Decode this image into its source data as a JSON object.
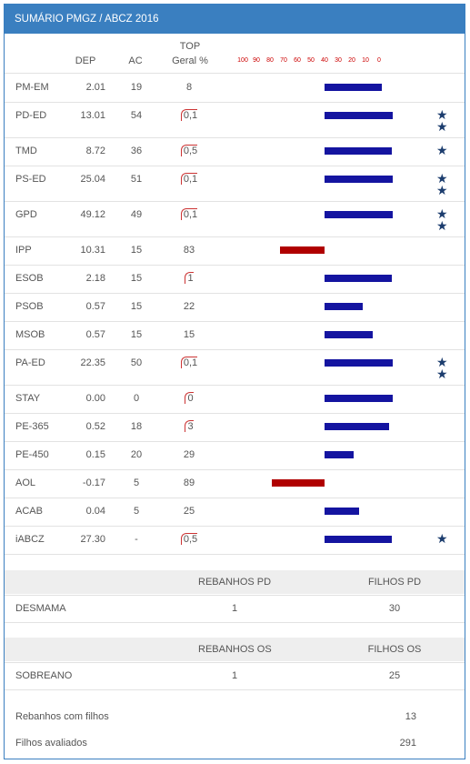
{
  "header": {
    "title": "SUMÁRIO PMGZ / ABCZ 2016"
  },
  "columns": {
    "dep": "DEP",
    "ac": "AC",
    "top": [
      "TOP",
      "Geral %"
    ]
  },
  "scale": [
    100,
    90,
    80,
    70,
    60,
    50,
    40,
    30,
    20,
    10,
    0
  ],
  "rows": [
    {
      "trait": "PM-EM",
      "dep": "2.01",
      "ac": "19",
      "top": "8",
      "stars": 0
    },
    {
      "trait": "PD-ED",
      "dep": "13.01",
      "ac": "54",
      "top": "0,1",
      "stars": 2
    },
    {
      "trait": "TMD",
      "dep": "8.72",
      "ac": "36",
      "top": "0,5",
      "stars": 1
    },
    {
      "trait": "PS-ED",
      "dep": "25.04",
      "ac": "51",
      "top": "0,1",
      "stars": 2
    },
    {
      "trait": "GPD",
      "dep": "49.12",
      "ac": "49",
      "top": "0,1",
      "stars": 2
    },
    {
      "trait": "IPP",
      "dep": "10.31",
      "ac": "15",
      "top": "83",
      "stars": 0
    },
    {
      "trait": "ESOB",
      "dep": "2.18",
      "ac": "15",
      "top": "1",
      "stars": 0
    },
    {
      "trait": "PSOB",
      "dep": "0.57",
      "ac": "15",
      "top": "22",
      "stars": 0
    },
    {
      "trait": "MSOB",
      "dep": "0.57",
      "ac": "15",
      "top": "15",
      "stars": 0
    },
    {
      "trait": "PA-ED",
      "dep": "22.35",
      "ac": "50",
      "top": "0,1",
      "stars": 2
    },
    {
      "trait": "STAY",
      "dep": "0.00",
      "ac": "0",
      "top": "0",
      "stars": 0
    },
    {
      "trait": "PE-365",
      "dep": "0.52",
      "ac": "18",
      "top": "3",
      "stars": 0
    },
    {
      "trait": "PE-450",
      "dep": "0.15",
      "ac": "20",
      "top": "29",
      "stars": 0
    },
    {
      "trait": "AOL",
      "dep": "-0.17",
      "ac": "5",
      "top": "89",
      "stars": 0
    },
    {
      "trait": "ACAB",
      "dep": "0.04",
      "ac": "5",
      "top": "25",
      "stars": 0
    },
    {
      "trait": "iABCZ",
      "dep": "27.30",
      "ac": "-",
      "top": "0,5",
      "stars": 1
    }
  ],
  "summary": [
    {
      "headers": [
        "REBANHOS PD",
        "FILHOS PD"
      ],
      "label": "DESMAMA",
      "values": [
        "1",
        "30"
      ]
    },
    {
      "headers": [
        "REBANHOS OS",
        "FILHOS OS"
      ],
      "label": "SOBREANO",
      "values": [
        "1",
        "25"
      ]
    }
  ],
  "totals": [
    {
      "label": "Rebanhos com filhos",
      "value": "13"
    },
    {
      "label": "Filhos avaliados",
      "value": "291"
    }
  ]
}
